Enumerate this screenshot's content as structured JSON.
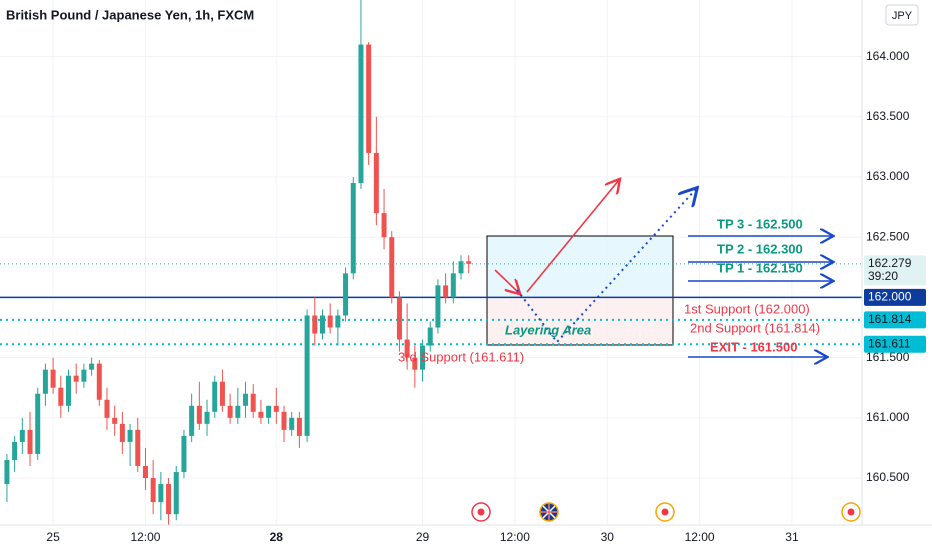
{
  "chart_data": {
    "type": "candlestick",
    "title": "British Pound / Japanese Yen, 1h, FXCM",
    "currency": "JPY",
    "up_color": "#26a69a",
    "down_color": "#ef5350",
    "x": [
      -6,
      -5,
      -4,
      -3,
      -2,
      -1,
      0,
      1,
      2,
      3,
      4,
      5,
      6,
      7,
      8,
      9,
      10,
      11,
      12,
      13,
      14,
      15,
      16,
      17,
      18,
      19,
      20,
      21,
      22,
      23,
      24,
      25,
      26,
      27,
      28,
      29,
      30,
      31,
      32,
      33,
      34,
      35,
      36,
      37,
      38,
      39,
      40,
      41,
      42,
      43,
      44,
      45,
      46,
      47,
      48,
      49,
      50,
      51,
      52,
      53,
      54
    ],
    "open": [
      160.45,
      160.65,
      160.8,
      160.9,
      160.7,
      161.2,
      161.4,
      161.25,
      161.1,
      161.35,
      161.3,
      161.4,
      161.45,
      161.15,
      161.0,
      160.95,
      160.8,
      160.9,
      160.6,
      160.5,
      160.3,
      160.45,
      160.2,
      160.55,
      160.85,
      161.1,
      160.95,
      161.05,
      161.3,
      161.1,
      161.0,
      161.1,
      161.2,
      161.05,
      161.0,
      161.1,
      161.05,
      160.9,
      161.0,
      160.85,
      161.85,
      161.7,
      161.85,
      161.75,
      161.85,
      162.2,
      162.95,
      164.1,
      163.2,
      162.7,
      162.5,
      162.0,
      161.65,
      161.5,
      161.4,
      161.6,
      161.75,
      162.1,
      162.0,
      162.2,
      162.3
    ],
    "high": [
      160.7,
      160.85,
      161.0,
      161.05,
      161.25,
      161.45,
      161.5,
      161.35,
      161.4,
      161.45,
      161.45,
      161.5,
      161.48,
      161.25,
      161.1,
      161.05,
      160.95,
      161.0,
      160.75,
      160.65,
      160.55,
      160.5,
      160.6,
      160.9,
      161.2,
      161.3,
      161.15,
      161.35,
      161.4,
      161.2,
      161.25,
      161.3,
      161.28,
      161.15,
      161.1,
      161.25,
      161.1,
      161.05,
      161.05,
      161.9,
      162.0,
      161.9,
      161.95,
      161.9,
      162.25,
      163.0,
      164.47,
      164.12,
      163.5,
      162.9,
      162.55,
      162.05,
      161.95,
      161.6,
      161.65,
      161.8,
      162.15,
      162.2,
      162.3,
      162.35,
      162.35
    ],
    "low": [
      160.3,
      160.55,
      160.7,
      160.6,
      160.65,
      161.1,
      161.2,
      161.0,
      161.05,
      161.2,
      161.25,
      161.35,
      161.1,
      160.9,
      160.85,
      160.7,
      160.6,
      160.55,
      160.4,
      160.2,
      160.15,
      160.11,
      160.15,
      160.5,
      160.8,
      160.9,
      160.85,
      161.0,
      161.05,
      160.95,
      160.95,
      161.0,
      161.0,
      160.95,
      160.95,
      160.95,
      160.8,
      160.85,
      160.75,
      160.8,
      161.6,
      161.65,
      161.7,
      161.6,
      161.8,
      162.15,
      162.9,
      163.1,
      162.6,
      162.4,
      161.95,
      161.55,
      161.4,
      161.25,
      161.3,
      161.55,
      161.7,
      161.95,
      161.95,
      162.15,
      162.2
    ],
    "close": [
      160.65,
      160.8,
      160.9,
      160.7,
      161.2,
      161.4,
      161.25,
      161.1,
      161.35,
      161.3,
      161.4,
      161.45,
      161.15,
      161.0,
      160.95,
      160.8,
      160.9,
      160.6,
      160.5,
      160.3,
      160.45,
      160.2,
      160.55,
      160.85,
      161.1,
      160.95,
      161.05,
      161.3,
      161.1,
      161.0,
      161.1,
      161.2,
      161.05,
      161.0,
      161.1,
      161.05,
      160.9,
      161.0,
      160.85,
      161.85,
      161.7,
      161.85,
      161.75,
      161.85,
      162.2,
      162.95,
      164.1,
      163.2,
      162.7,
      162.5,
      162.0,
      161.65,
      161.5,
      161.4,
      161.6,
      161.75,
      162.1,
      162.0,
      162.2,
      162.3,
      162.279
    ],
    "xlim": [
      -6.9,
      105.1
    ],
    "xticks": [
      {
        "value": 0,
        "label": "25"
      },
      {
        "value": 12,
        "label": "12:00"
      },
      {
        "value": 29,
        "label": "28"
      },
      {
        "value": 48,
        "label": "29"
      },
      {
        "value": 60,
        "label": "12:00"
      },
      {
        "value": 72,
        "label": "30"
      },
      {
        "value": 84,
        "label": "12:00"
      },
      {
        "value": 96,
        "label": "31"
      }
    ],
    "ylim": [
      160.11,
      164.47
    ],
    "yticks": [
      {
        "value": 160.5,
        "label": "160.500"
      },
      {
        "value": 161,
        "label": "161.000"
      },
      {
        "value": 161.5,
        "label": "161.500"
      },
      {
        "value": 162.5,
        "label": "162.500"
      },
      {
        "value": 163,
        "label": "163.000"
      },
      {
        "value": 163.5,
        "label": "163.500"
      },
      {
        "value": 164,
        "label": "164.000"
      }
    ],
    "lines": [
      {
        "value": 162.279,
        "label": "162.279",
        "countdown": "39:20",
        "color": "#26a69a",
        "style": "dotted"
      },
      {
        "value": 162,
        "label": "162.000",
        "color": "#0d3c9e",
        "style": "solid"
      },
      {
        "value": 161.814,
        "label": "161.814",
        "color": "#00bcd4",
        "style": "dotted"
      },
      {
        "value": 161.611,
        "label": "161.611",
        "color": "#00bcd4",
        "style": "dotted"
      }
    ],
    "annotations": {
      "tp3": "TP 3 - 162.500",
      "tp2": "TP 2 - 162.300",
      "tp1": "TP 1 - 162.150",
      "support1": "1st Support (162.000)",
      "support2": "2nd Support (161.814)",
      "exit": "EXIT - 161.500",
      "support3": "3rd Support (161.611)",
      "layering": "Layering Area"
    }
  }
}
